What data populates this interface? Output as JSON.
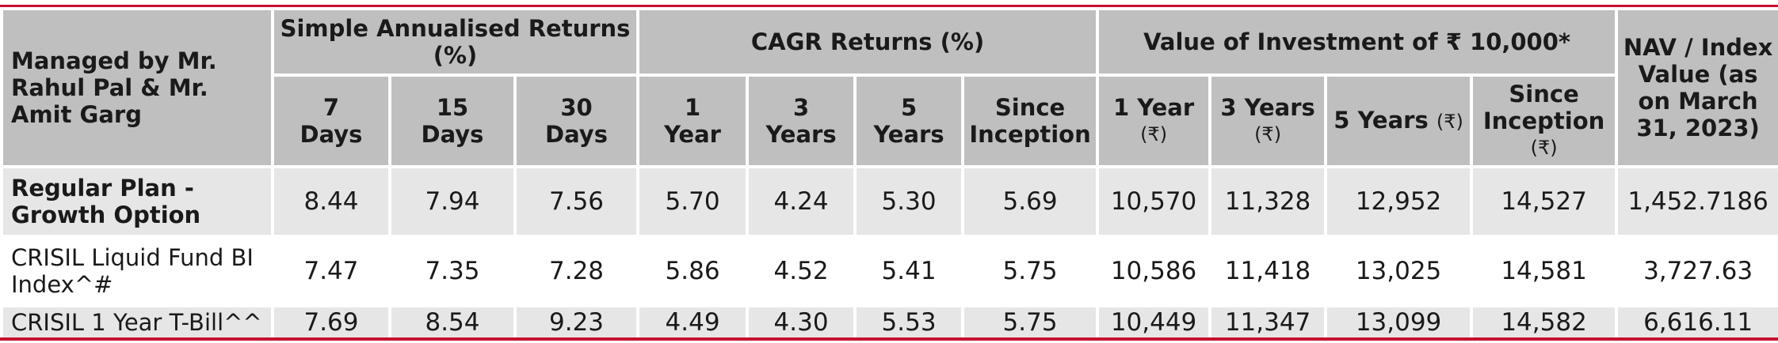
{
  "header": {
    "manager": "Managed by Mr. Rahul Pal & Mr. Amit Garg",
    "simple_group": "Simple Annualised Returns (%)",
    "cagr_group": "CAGR Returns (%)",
    "value_group": "Value of Investment of ₹ 10,000*",
    "nav": "NAV / Index Value (as on March 31, 2023)",
    "simple_cols": [
      {
        "a": "7",
        "b": "Days"
      },
      {
        "a": "15",
        "b": "Days"
      },
      {
        "a": "30",
        "b": "Days"
      }
    ],
    "cagr_cols": [
      {
        "a": "1",
        "b": "Year"
      },
      {
        "a": "3",
        "b": "Years"
      },
      {
        "a": "5",
        "b": "Years"
      },
      {
        "a": "Since",
        "b": "Inception"
      }
    ],
    "value_cols": [
      {
        "a": "1 Year",
        "b": "(₹)"
      },
      {
        "a": "3 Years",
        "b": "(₹)"
      },
      {
        "a": "5 Years",
        "b": "(₹)"
      },
      {
        "a": "Since Inception",
        "b": "(₹)"
      }
    ]
  },
  "rows": [
    {
      "label": "Regular Plan - Growth Option",
      "values": [
        "8.44",
        "7.94",
        "7.56",
        "5.70",
        "4.24",
        "5.30",
        "5.69",
        "10,570",
        "11,328",
        "12,952",
        "14,527",
        "1,452.7186"
      ]
    },
    {
      "label": "CRISIL Liquid Fund BI Index^#",
      "values": [
        "7.47",
        "7.35",
        "7.28",
        "5.86",
        "4.52",
        "5.41",
        "5.75",
        "10,586",
        "11,418",
        "13,025",
        "14,581",
        "3,727.63"
      ]
    },
    {
      "label": "CRISIL 1 Year T-Bill^^",
      "values": [
        "7.69",
        "8.54",
        "9.23",
        "4.49",
        "4.30",
        "5.53",
        "5.75",
        "10,449",
        "11,347",
        "13,099",
        "14,582",
        "6,616.11"
      ]
    }
  ],
  "colors": {
    "accent": "#c8102e",
    "header_bg": "#bfbfbf",
    "row_shade": "#e6e6e6"
  }
}
